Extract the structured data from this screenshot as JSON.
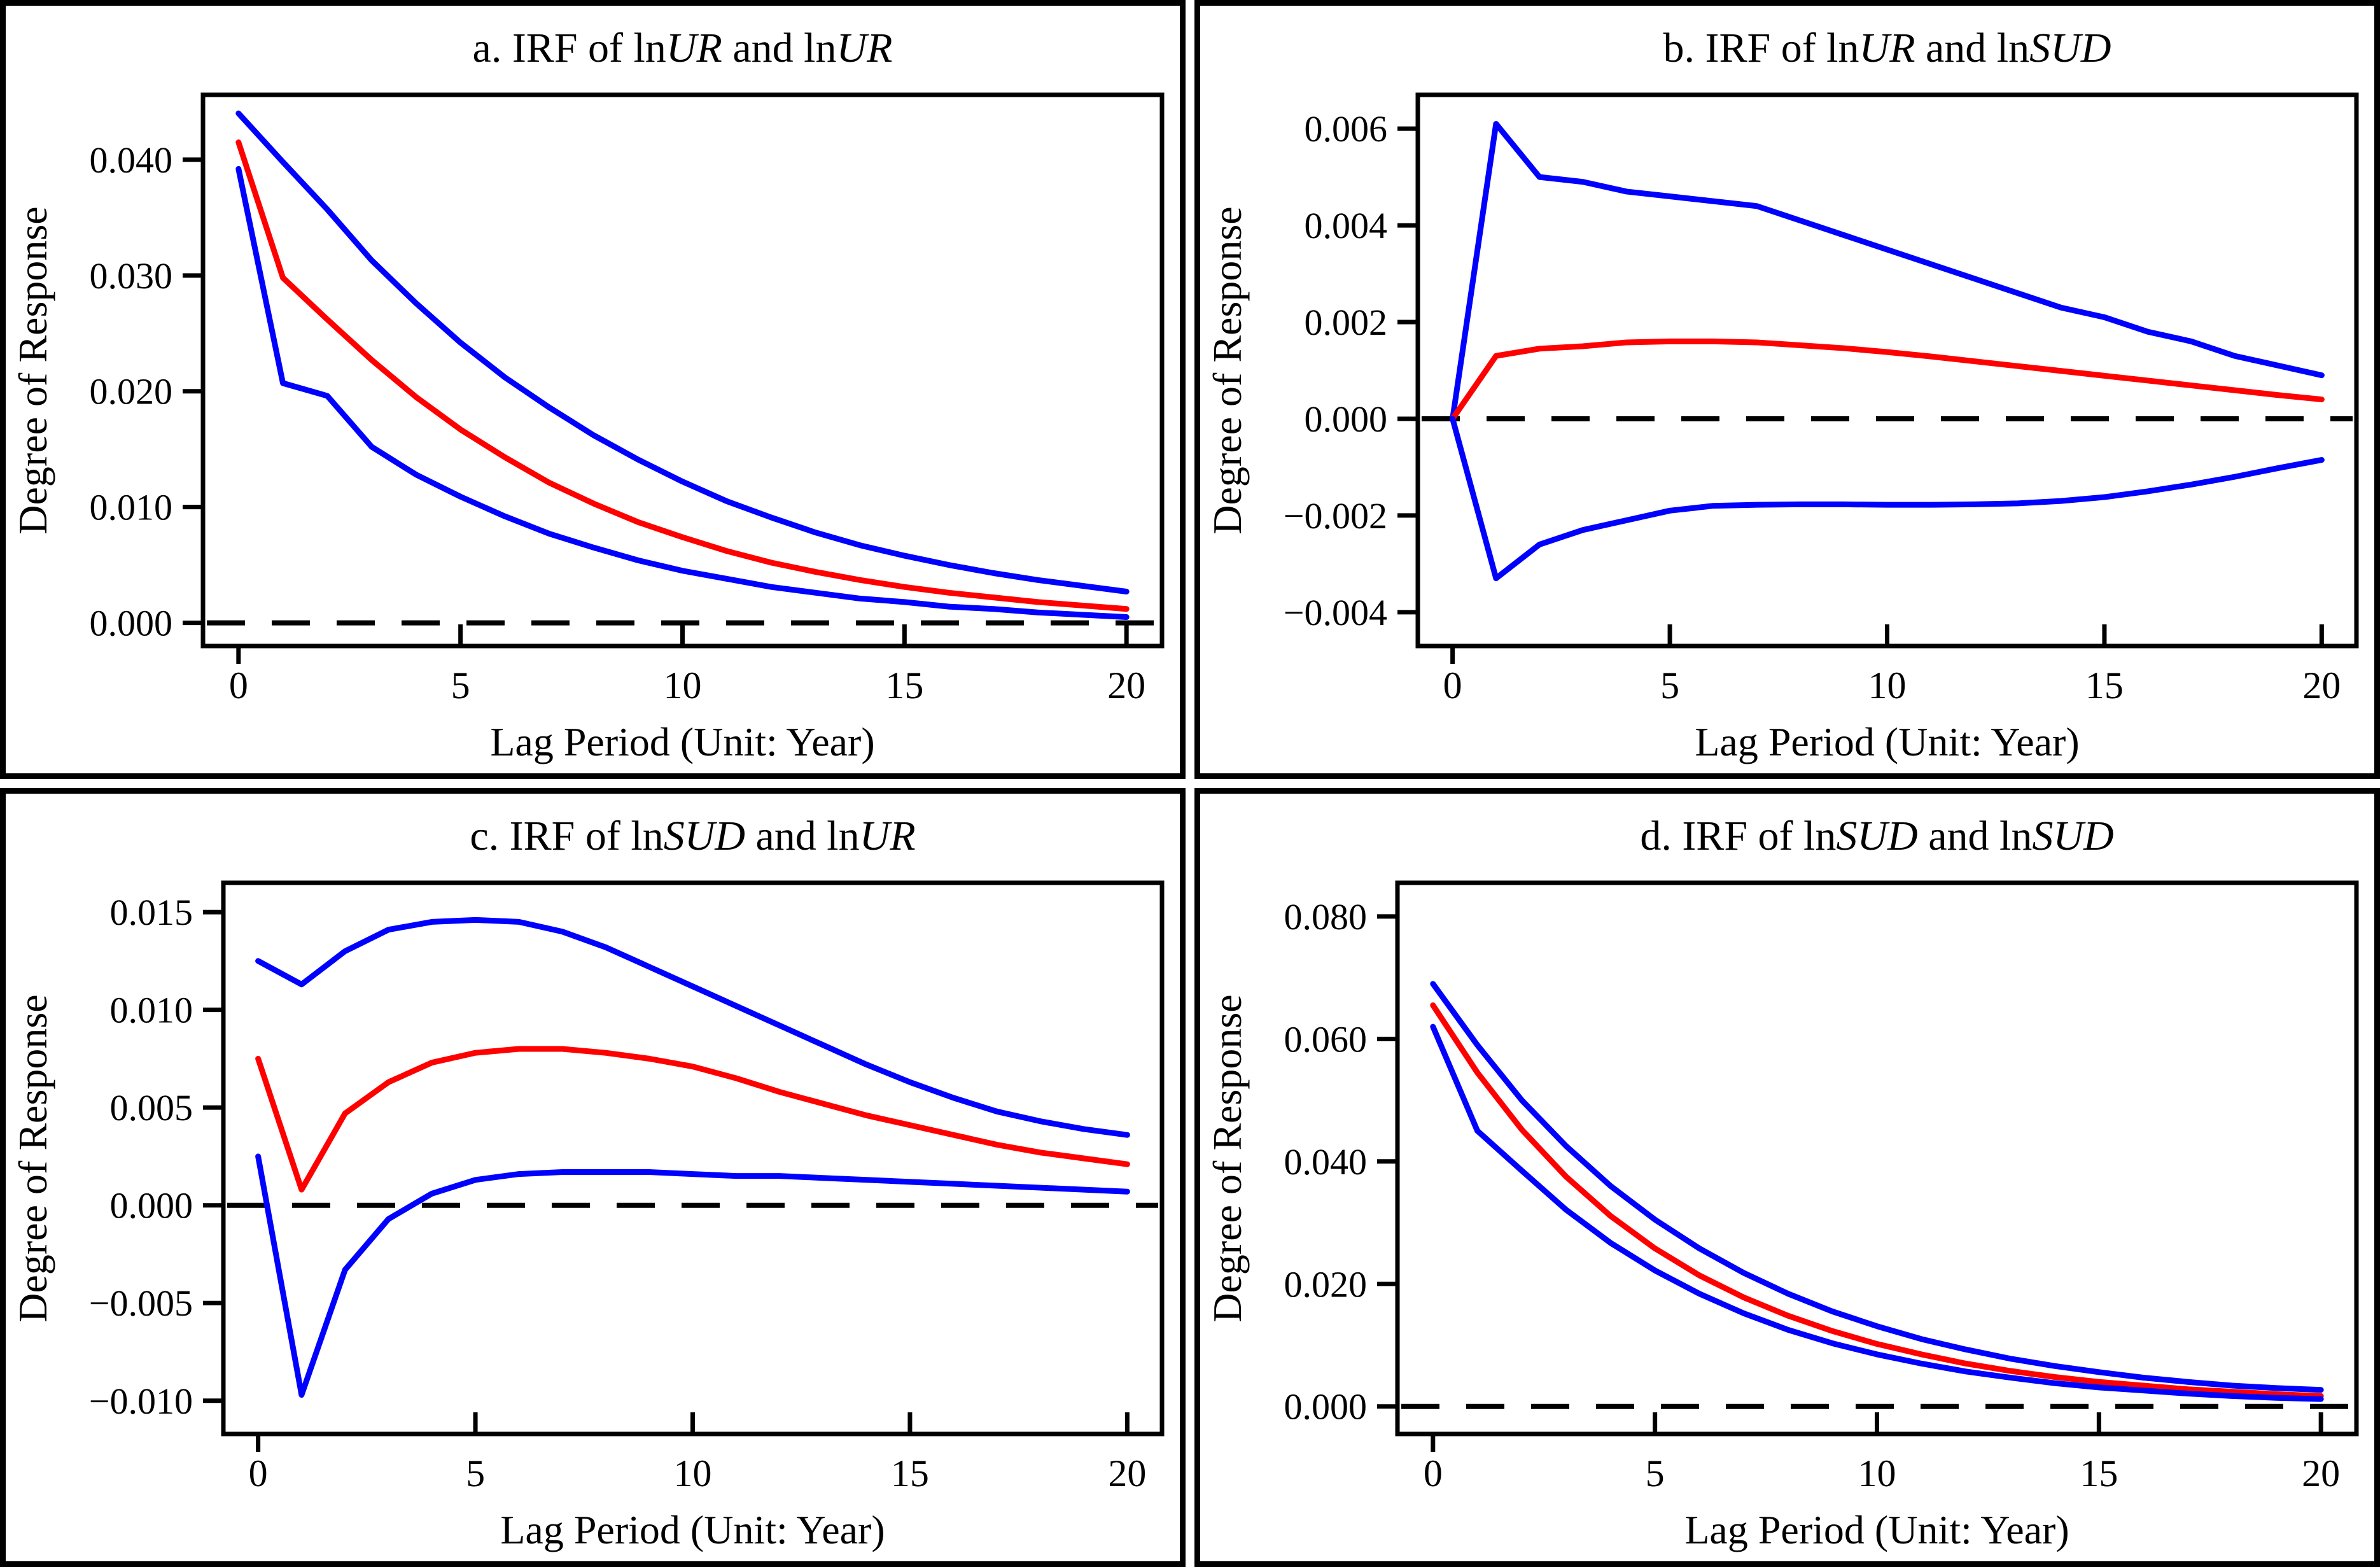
{
  "figure": {
    "description": "2x2 grid of impulse response function (IRF) plots with 95% confidence bands",
    "background": "#FFFFFF",
    "border_color": "#000000"
  },
  "colors": {
    "band_blue": "#0000FF",
    "irf_red": "#FF0000",
    "axis_black": "#000000",
    "zero_line_black": "#000000"
  },
  "chart_data": [
    {
      "id": "a",
      "type": "line",
      "title_text": "a. IRF of lnUR and lnUR",
      "title_segments": [
        {
          "t": "a. IRF of ln",
          "italic": false
        },
        {
          "t": "UR",
          "italic": true
        },
        {
          "t": " and ln",
          "italic": false
        },
        {
          "t": "UR",
          "italic": true
        }
      ],
      "xlabel": "Lag Period (Unit: Year)",
      "ylabel": "Degree of Response",
      "xlim": [
        -0.8,
        20.8
      ],
      "ylim": [
        -0.002,
        0.0456
      ],
      "xticks": [
        0,
        5,
        10,
        15,
        20
      ],
      "yticks": [
        0.0,
        0.01,
        0.02,
        0.03,
        0.04
      ],
      "ytick_decimals": 3,
      "zero_line": true,
      "grid": false,
      "legend": "none",
      "x": [
        0,
        1,
        2,
        3,
        4,
        5,
        6,
        7,
        8,
        9,
        10,
        11,
        12,
        13,
        14,
        15,
        16,
        17,
        18,
        19,
        20
      ],
      "series": [
        {
          "name": "upper-confidence-band",
          "color": "#0000FF",
          "values": [
            0.044,
            0.0398,
            0.0357,
            0.0313,
            0.0276,
            0.0242,
            0.0212,
            0.0186,
            0.0162,
            0.0141,
            0.0122,
            0.0105,
            0.0091,
            0.0078,
            0.0067,
            0.0058,
            0.005,
            0.0043,
            0.0037,
            0.0032,
            0.0027
          ]
        },
        {
          "name": "irf",
          "color": "#FF0000",
          "values": [
            0.0415,
            0.0298,
            0.0262,
            0.0227,
            0.0195,
            0.0167,
            0.0143,
            0.0121,
            0.0103,
            0.0087,
            0.0074,
            0.0062,
            0.0052,
            0.0044,
            0.0037,
            0.0031,
            0.0026,
            0.0022,
            0.0018,
            0.0015,
            0.0012
          ]
        },
        {
          "name": "lower-confidence-band",
          "color": "#0000FF",
          "values": [
            0.0392,
            0.0207,
            0.0196,
            0.0152,
            0.0128,
            0.0109,
            0.0092,
            0.0077,
            0.0065,
            0.0054,
            0.0045,
            0.0038,
            0.0031,
            0.0026,
            0.0021,
            0.0018,
            0.0014,
            0.0012,
            0.0009,
            0.0007,
            0.0005
          ]
        }
      ]
    },
    {
      "id": "b",
      "type": "line",
      "title_text": "b. IRF of lnUR and lnSUD",
      "title_segments": [
        {
          "t": "b. IRF of ln",
          "italic": false
        },
        {
          "t": "UR",
          "italic": true
        },
        {
          "t": " and ln",
          "italic": false
        },
        {
          "t": "SUD",
          "italic": true
        }
      ],
      "xlabel": "Lag Period (Unit: Year)",
      "ylabel": "Degree of Response",
      "xlim": [
        -0.8,
        20.8
      ],
      "ylim": [
        -0.0047,
        0.0067
      ],
      "xticks": [
        0,
        5,
        10,
        15,
        20
      ],
      "yticks": [
        -0.004,
        -0.002,
        0.0,
        0.002,
        0.004,
        0.006
      ],
      "ytick_decimals": 3,
      "zero_line": true,
      "grid": false,
      "legend": "none",
      "x": [
        0,
        1,
        2,
        3,
        4,
        5,
        6,
        7,
        8,
        9,
        10,
        11,
        12,
        13,
        14,
        15,
        16,
        17,
        18,
        19,
        20
      ],
      "series": [
        {
          "name": "upper-confidence-band",
          "color": "#0000FF",
          "values": [
            0.0,
            0.0061,
            0.005,
            0.0049,
            0.0047,
            0.0046,
            0.0045,
            0.0044,
            0.0041,
            0.0038,
            0.0035,
            0.0032,
            0.0029,
            0.0026,
            0.0023,
            0.0021,
            0.0018,
            0.0016,
            0.0013,
            0.0011,
            0.0009
          ]
        },
        {
          "name": "irf",
          "color": "#FF0000",
          "values": [
            0.0,
            0.0013,
            0.00145,
            0.0015,
            0.00158,
            0.0016,
            0.0016,
            0.00158,
            0.00152,
            0.00146,
            0.00138,
            0.00129,
            0.00119,
            0.00109,
            0.00099,
            0.00089,
            0.00079,
            0.00069,
            0.00059,
            0.00049,
            0.0004
          ]
        },
        {
          "name": "lower-confidence-band",
          "color": "#0000FF",
          "values": [
            0.0,
            -0.0033,
            -0.0026,
            -0.0023,
            -0.0021,
            -0.0019,
            -0.0018,
            -0.00178,
            -0.00177,
            -0.00177,
            -0.00178,
            -0.00178,
            -0.00177,
            -0.00175,
            -0.0017,
            -0.00162,
            -0.0015,
            -0.00136,
            -0.0012,
            -0.00102,
            -0.00085
          ]
        }
      ]
    },
    {
      "id": "c",
      "type": "line",
      "title_text": "c. IRF of lnSUD and lnUR",
      "title_segments": [
        {
          "t": "c. IRF of ln",
          "italic": false
        },
        {
          "t": "SUD",
          "italic": true
        },
        {
          "t": " and ln",
          "italic": false
        },
        {
          "t": "UR",
          "italic": true
        }
      ],
      "xlabel": "Lag Period (Unit: Year)",
      "ylabel": "Degree of Response",
      "xlim": [
        -0.8,
        20.8
      ],
      "ylim": [
        -0.0117,
        0.0165
      ],
      "xticks": [
        0,
        5,
        10,
        15,
        20
      ],
      "yticks": [
        -0.01,
        -0.005,
        0.0,
        0.005,
        0.01,
        0.015
      ],
      "ytick_decimals": 3,
      "zero_line": true,
      "grid": false,
      "legend": "none",
      "x": [
        0,
        1,
        2,
        3,
        4,
        5,
        6,
        7,
        8,
        9,
        10,
        11,
        12,
        13,
        14,
        15,
        16,
        17,
        18,
        19,
        20
      ],
      "series": [
        {
          "name": "upper-confidence-band",
          "color": "#0000FF",
          "values": [
            0.0125,
            0.0113,
            0.013,
            0.0141,
            0.0145,
            0.0146,
            0.0145,
            0.014,
            0.0132,
            0.0122,
            0.0112,
            0.0102,
            0.0092,
            0.0082,
            0.0072,
            0.0063,
            0.0055,
            0.0048,
            0.0043,
            0.0039,
            0.0036
          ]
        },
        {
          "name": "irf",
          "color": "#FF0000",
          "values": [
            0.0075,
            0.0008,
            0.0047,
            0.0063,
            0.0073,
            0.0078,
            0.008,
            0.008,
            0.0078,
            0.0075,
            0.0071,
            0.0065,
            0.0058,
            0.0052,
            0.0046,
            0.0041,
            0.0036,
            0.0031,
            0.0027,
            0.0024,
            0.0021
          ]
        },
        {
          "name": "lower-confidence-band",
          "color": "#0000FF",
          "values": [
            0.0025,
            -0.0097,
            -0.0033,
            -0.0007,
            0.0006,
            0.0013,
            0.0016,
            0.0017,
            0.0017,
            0.0017,
            0.0016,
            0.0015,
            0.0015,
            0.0014,
            0.0013,
            0.0012,
            0.0011,
            0.001,
            0.0009,
            0.0008,
            0.0007
          ]
        }
      ]
    },
    {
      "id": "d",
      "type": "line",
      "title_text": "d. IRF of lnSUD and lnSUD",
      "title_segments": [
        {
          "t": "d. IRF of ln",
          "italic": false
        },
        {
          "t": "SUD",
          "italic": true
        },
        {
          "t": " and ln",
          "italic": false
        },
        {
          "t": "SUD",
          "italic": true
        }
      ],
      "xlabel": "Lag Period (Unit: Year)",
      "ylabel": "Degree of Response",
      "xlim": [
        -0.8,
        20.8
      ],
      "ylim": [
        -0.0045,
        0.0855
      ],
      "xticks": [
        0,
        5,
        10,
        15,
        20
      ],
      "yticks": [
        0.0,
        0.02,
        0.04,
        0.06,
        0.08
      ],
      "ytick_decimals": 3,
      "zero_line": true,
      "grid": false,
      "legend": "none",
      "x": [
        0,
        1,
        2,
        3,
        4,
        5,
        6,
        7,
        8,
        9,
        10,
        11,
        12,
        13,
        14,
        15,
        16,
        17,
        18,
        19,
        20
      ],
      "series": [
        {
          "name": "upper-confidence-band",
          "color": "#0000FF",
          "values": [
            0.069,
            0.059,
            0.05,
            0.0425,
            0.036,
            0.0305,
            0.0258,
            0.0218,
            0.0184,
            0.0155,
            0.0131,
            0.011,
            0.0093,
            0.0078,
            0.0066,
            0.0056,
            0.0047,
            0.004,
            0.0034,
            0.003,
            0.0027
          ]
        },
        {
          "name": "irf",
          "color": "#FF0000",
          "values": [
            0.0655,
            0.0545,
            0.0452,
            0.0375,
            0.0311,
            0.0258,
            0.0214,
            0.0178,
            0.0148,
            0.0123,
            0.0102,
            0.0085,
            0.007,
            0.0058,
            0.0048,
            0.004,
            0.0034,
            0.0028,
            0.0024,
            0.002,
            0.0017
          ]
        },
        {
          "name": "lower-confidence-band",
          "color": "#0000FF",
          "values": [
            0.062,
            0.045,
            0.0385,
            0.0321,
            0.0267,
            0.0222,
            0.0184,
            0.0152,
            0.0125,
            0.0103,
            0.0085,
            0.007,
            0.0057,
            0.0047,
            0.0038,
            0.0031,
            0.0026,
            0.0021,
            0.0017,
            0.0014,
            0.0012
          ]
        }
      ]
    }
  ]
}
